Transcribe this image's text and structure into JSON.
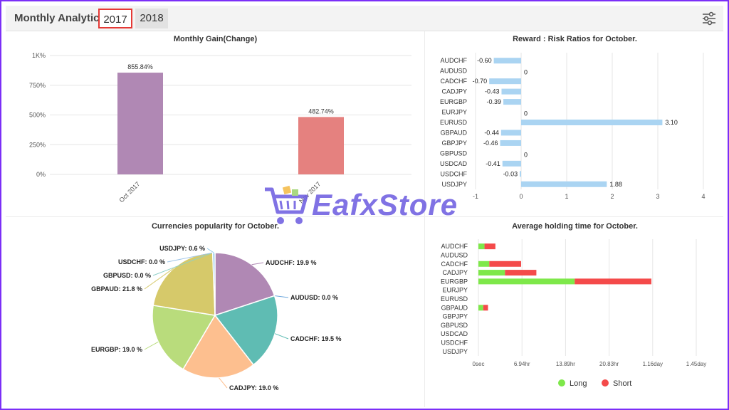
{
  "header": {
    "title": "Monthly Analytics",
    "tabs": [
      "2017",
      "2018"
    ],
    "active_tab": "2017"
  },
  "icons": {
    "settings": "sliders-icon"
  },
  "watermark": {
    "text": "EafxStore"
  },
  "colors": {
    "bar1": "#b088b4",
    "bar2": "#e5817f",
    "hbar": "#aad4f2",
    "long": "#7ee84a",
    "short": "#f44a4a"
  },
  "chart_data": [
    {
      "type": "bar",
      "title": "Monthly Gain(Change)",
      "categories": [
        "Oct 2017",
        "Nov 2017"
      ],
      "values": [
        855.84,
        482.74
      ],
      "data_labels": [
        "855.84%",
        "482.74%"
      ],
      "yticks": [
        "0%",
        "250%",
        "500%",
        "750%",
        "1K%"
      ],
      "ylim": [
        0,
        1000
      ]
    },
    {
      "type": "bar",
      "orientation": "horizontal",
      "title": "Reward : Risk Ratios for October.",
      "categories": [
        "AUDCHF",
        "AUDUSD",
        "CADCHF",
        "CADJPY",
        "EURGBP",
        "EURJPY",
        "EURUSD",
        "GBPAUD",
        "GBPJPY",
        "GBPUSD",
        "USDCAD",
        "USDCHF",
        "USDJPY"
      ],
      "values": [
        -0.6,
        0,
        -0.7,
        -0.43,
        -0.39,
        0,
        3.1,
        -0.44,
        -0.46,
        0,
        -0.41,
        -0.03,
        1.88
      ],
      "data_labels": [
        "-0.60",
        "0",
        "-0.70",
        "-0.43",
        "-0.39",
        "0",
        "3.10",
        "-0.44",
        "-0.46",
        "0",
        "-0.41",
        "-0.03",
        "1.88"
      ],
      "xticks": [
        "-1",
        "0",
        "1",
        "2",
        "3",
        "4"
      ],
      "xlim": [
        -1,
        4
      ]
    },
    {
      "type": "pie",
      "title": "Currencies popularity for October.",
      "labels": [
        "AUDCHF: 19.9 %",
        "AUDUSD: 0.0 %",
        "CADCHF: 19.5 %",
        "CADJPY: 19.0 %",
        "EURGBP: 19.0 %",
        "GBPAUD: 21.8 %",
        "GBPUSD: 0.0 %",
        "USDCHF: 0.0 %",
        "USDJPY: 0.6 %"
      ],
      "values": [
        19.9,
        0.0,
        19.5,
        19.0,
        19.0,
        21.8,
        0.0,
        0.0,
        0.6
      ],
      "colors": [
        "#b088b4",
        "#6fa8dc",
        "#5fbcb3",
        "#fdbf8f",
        "#b9dc7c",
        "#d6c96a",
        "#8fd0c8",
        "#9fc5e8",
        "#8ec6e8"
      ]
    },
    {
      "type": "bar",
      "orientation": "horizontal",
      "stacked": true,
      "title": "Average holding time for October.",
      "categories": [
        "AUDCHF",
        "AUDUSD",
        "CADCHF",
        "CADJPY",
        "EURGBP",
        "EURJPY",
        "EURUSD",
        "GBPAUD",
        "GBPJPY",
        "GBPUSD",
        "USDCAD",
        "USDCHF",
        "USDJPY"
      ],
      "series": [
        {
          "name": "Long",
          "values": [
            0.14,
            0,
            0.25,
            0.61,
            2.21,
            0,
            0,
            0.11,
            0,
            0,
            0,
            0,
            0
          ]
        },
        {
          "name": "Short",
          "values": [
            0.25,
            0,
            0.73,
            0.72,
            1.76,
            0,
            0,
            0.11,
            0,
            0,
            0,
            0,
            0
          ]
        }
      ],
      "xticks": [
        "0sec",
        "6.94hr",
        "13.89hr",
        "20.83hr",
        "1.16day",
        "1.45day"
      ],
      "xlim": [
        0,
        5
      ],
      "legend": "bottom"
    }
  ]
}
